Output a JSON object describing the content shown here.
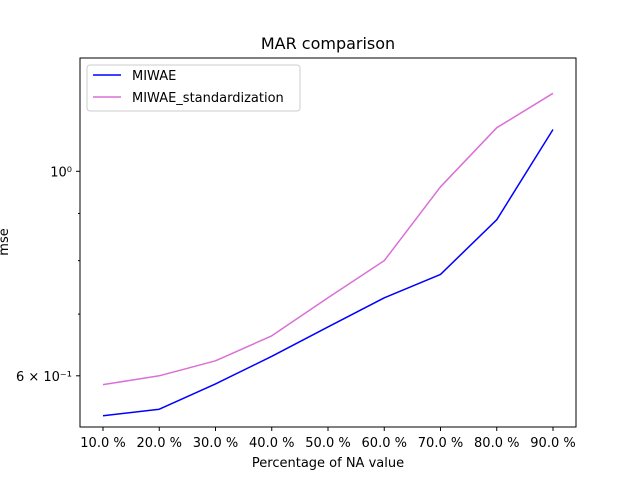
{
  "chart_data": {
    "type": "line",
    "title": "MAR comparison",
    "xlabel": "Percentage of NA value",
    "ylabel": "mse",
    "categories": [
      "10.0 %",
      "20.0 %",
      "30.0 %",
      "40.0 %",
      "50.0 %",
      "60.0 %",
      "70.0 %",
      "80.0 %",
      "90.0 %"
    ],
    "yscale": "log",
    "ylim": [
      0.528,
      1.327
    ],
    "yticks": [
      {
        "value": 0.6,
        "label": "6 × 10⁻¹"
      },
      {
        "value": 1.0,
        "label": "10⁰"
      }
    ],
    "series": [
      {
        "name": "MIWAE",
        "color": "#0000ff",
        "values": [
          0.543,
          0.552,
          0.588,
          0.63,
          0.678,
          0.729,
          0.773,
          0.886,
          1.11
        ]
      },
      {
        "name": "MIWAE_standardization",
        "color": "#da70d6",
        "values": [
          0.587,
          0.6,
          0.623,
          0.663,
          0.729,
          0.8,
          0.962,
          1.115,
          1.215
        ]
      }
    ],
    "legend_position": "top-left",
    "grid": false
  }
}
